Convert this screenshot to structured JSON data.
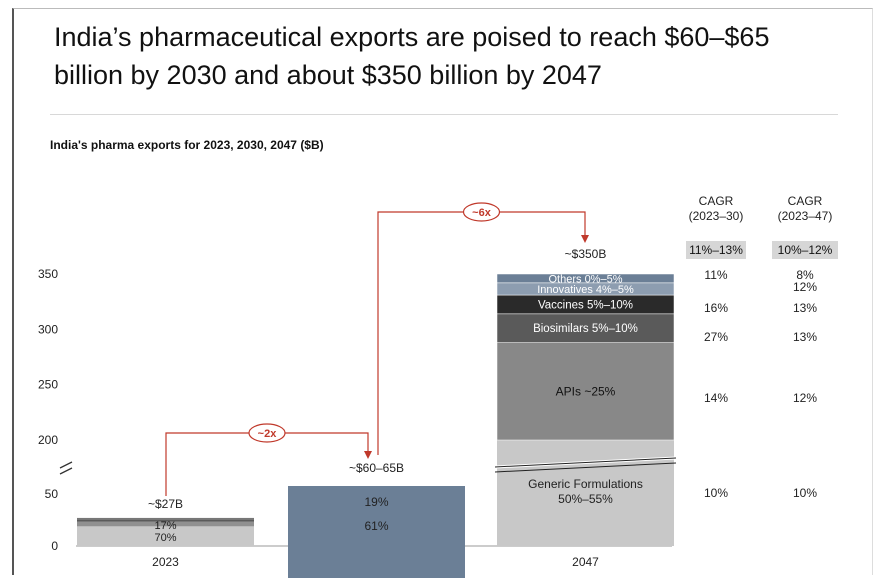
{
  "header": {
    "title": "India’s pharmaceutical exports are poised to reach $60–$65 billion by 2030 and about $350 billion by 2047",
    "subtitle": "India's pharma exports for 2023, 2030, 2047 ($B)"
  },
  "chart_data": {
    "type": "bar",
    "stacked": true,
    "axis_break": true,
    "y_ticks": [
      0,
      50,
      200,
      250,
      300,
      350
    ],
    "categories": [
      "2023",
      "2030",
      "2047"
    ],
    "totals": [
      "~$27B",
      "~$60–65B",
      "~$350B"
    ],
    "series": [
      {
        "name": "Generic Formulations 50%–55%",
        "values": [
          null,
          null,
          175
        ],
        "color": "#c8c8c8"
      },
      {
        "name": "APIs ~25%",
        "values": [
          null,
          null,
          88
        ],
        "color": "#888888"
      },
      {
        "name": "Biosimilars 5%–10%",
        "values": [
          null,
          null,
          26
        ],
        "color": "#5a5a5a"
      },
      {
        "name": "Vaccines 5%–10%",
        "values": [
          null,
          null,
          26
        ],
        "color": "#2a2a2a"
      },
      {
        "name": "Innovatives 4%–5%",
        "values": [
          null,
          null,
          16
        ],
        "color": "#8d9db0"
      },
      {
        "name": "Others 0%–5%",
        "values": [
          null,
          null,
          9
        ],
        "color": "#6b7f96"
      }
    ],
    "segment_labels": {
      "2023": [
        "70%",
        "17%"
      ],
      "2030": [
        "61%",
        "19%"
      ]
    },
    "multipliers": [
      {
        "label": "~2x",
        "from": "2023",
        "to": "2030"
      },
      {
        "label": "~6x",
        "from": "2030",
        "to": "2047"
      }
    ],
    "cagr": {
      "headers": [
        [
          "CAGR",
          "(2023–30)"
        ],
        [
          "CAGR",
          "(2023–47)"
        ]
      ],
      "totals": [
        "11%–13%",
        "10%–12%"
      ],
      "rows": [
        {
          "segment": "Others",
          "v1": "11%",
          "v2": "8%"
        },
        {
          "segment": "Innovatives",
          "v1": "",
          "v2": "12%"
        },
        {
          "segment": "Vaccines",
          "v1": "16%",
          "v2": "13%"
        },
        {
          "segment": "Biosimilars",
          "v1": "27%",
          "v2": "13%"
        },
        {
          "segment": "APIs",
          "v1": "14%",
          "v2": "12%"
        },
        {
          "segment": "Generic Formulations",
          "v1": "10%",
          "v2": "10%"
        }
      ]
    },
    "colors": {
      "accent": "#c0392b",
      "tableHighlight": "#d6d6d6"
    }
  }
}
